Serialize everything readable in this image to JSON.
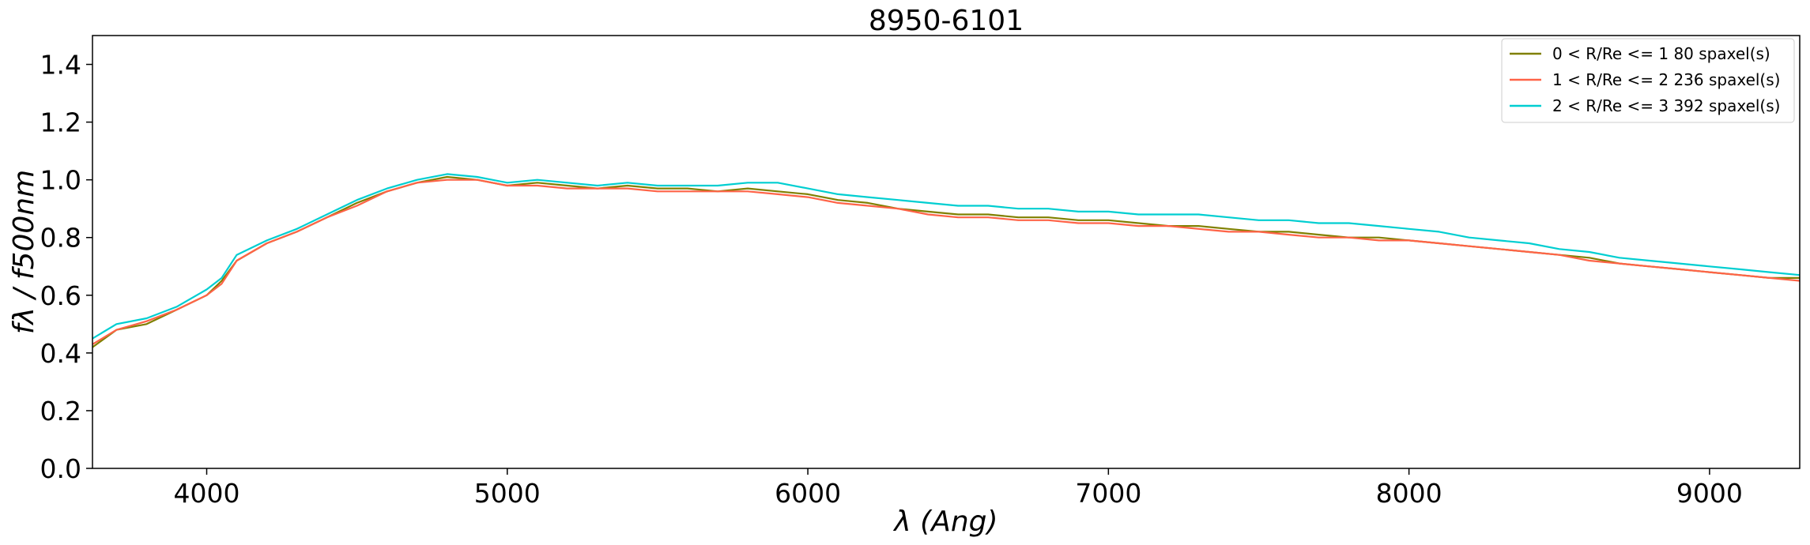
{
  "chart_data": {
    "type": "line",
    "title": "8950-6101",
    "xlabel": "λ (Ang)",
    "ylabel": "fλ / f500nm",
    "xlim": [
      3620,
      9300
    ],
    "ylim": [
      0.0,
      1.5
    ],
    "xticks": [
      4000,
      5000,
      6000,
      7000,
      8000,
      9000
    ],
    "yticks": [
      0.0,
      0.2,
      0.4,
      0.6,
      0.8,
      1.0,
      1.2,
      1.4
    ],
    "ytick_labels": [
      "0.0",
      "0.2",
      "0.4",
      "0.6",
      "0.8",
      "1.0",
      "1.2",
      "1.4"
    ],
    "grid": false,
    "legend_position": "top-right",
    "series": [
      {
        "name": "0 < R/Re <= 1 80 spaxel(s)",
        "color": "#808000",
        "x": [
          3620,
          3700,
          3800,
          3900,
          4000,
          4050,
          4100,
          4200,
          4300,
          4400,
          4500,
          4600,
          4700,
          4800,
          4900,
          5000,
          5100,
          5200,
          5300,
          5400,
          5500,
          5600,
          5700,
          5800,
          5900,
          6000,
          6100,
          6200,
          6300,
          6400,
          6500,
          6600,
          6700,
          6800,
          6900,
          7000,
          7100,
          7200,
          7300,
          7400,
          7500,
          7600,
          7700,
          7800,
          7900,
          8000,
          8100,
          8200,
          8300,
          8400,
          8500,
          8600,
          8700,
          8800,
          8900,
          9000,
          9100,
          9200,
          9300
        ],
        "values": [
          0.42,
          0.48,
          0.5,
          0.55,
          0.6,
          0.65,
          0.72,
          0.78,
          0.82,
          0.87,
          0.92,
          0.96,
          0.99,
          1.01,
          1.0,
          0.98,
          0.99,
          0.98,
          0.97,
          0.98,
          0.97,
          0.97,
          0.96,
          0.97,
          0.96,
          0.95,
          0.93,
          0.92,
          0.9,
          0.89,
          0.88,
          0.88,
          0.87,
          0.87,
          0.86,
          0.86,
          0.85,
          0.84,
          0.84,
          0.83,
          0.82,
          0.82,
          0.81,
          0.8,
          0.8,
          0.79,
          0.78,
          0.77,
          0.76,
          0.75,
          0.74,
          0.73,
          0.71,
          0.7,
          0.69,
          0.68,
          0.67,
          0.66,
          0.66
        ]
      },
      {
        "name": "1 < R/Re <= 2 236 spaxel(s)",
        "color": "#ff6347",
        "x": [
          3620,
          3700,
          3800,
          3900,
          4000,
          4050,
          4100,
          4200,
          4300,
          4400,
          4500,
          4600,
          4700,
          4800,
          4900,
          5000,
          5100,
          5200,
          5300,
          5400,
          5500,
          5600,
          5700,
          5800,
          5900,
          6000,
          6100,
          6200,
          6300,
          6400,
          6500,
          6600,
          6700,
          6800,
          6900,
          7000,
          7100,
          7200,
          7300,
          7400,
          7500,
          7600,
          7700,
          7800,
          7900,
          8000,
          8100,
          8200,
          8300,
          8400,
          8500,
          8600,
          8700,
          8800,
          8900,
          9000,
          9100,
          9200,
          9300
        ],
        "values": [
          0.43,
          0.48,
          0.51,
          0.55,
          0.6,
          0.64,
          0.72,
          0.78,
          0.82,
          0.87,
          0.91,
          0.96,
          0.99,
          1.0,
          1.0,
          0.98,
          0.98,
          0.97,
          0.97,
          0.97,
          0.96,
          0.96,
          0.96,
          0.96,
          0.95,
          0.94,
          0.92,
          0.91,
          0.9,
          0.88,
          0.87,
          0.87,
          0.86,
          0.86,
          0.85,
          0.85,
          0.84,
          0.84,
          0.83,
          0.82,
          0.82,
          0.81,
          0.8,
          0.8,
          0.79,
          0.79,
          0.78,
          0.77,
          0.76,
          0.75,
          0.74,
          0.72,
          0.71,
          0.7,
          0.69,
          0.68,
          0.67,
          0.66,
          0.65
        ]
      },
      {
        "name": "2 < R/Re <= 3 392 spaxel(s)",
        "color": "#00ced1",
        "x": [
          3620,
          3700,
          3800,
          3900,
          4000,
          4050,
          4100,
          4200,
          4300,
          4400,
          4500,
          4600,
          4700,
          4800,
          4900,
          5000,
          5100,
          5200,
          5300,
          5400,
          5500,
          5600,
          5700,
          5800,
          5900,
          6000,
          6100,
          6200,
          6300,
          6400,
          6500,
          6600,
          6700,
          6800,
          6900,
          7000,
          7100,
          7200,
          7300,
          7400,
          7500,
          7600,
          7700,
          7800,
          7900,
          8000,
          8100,
          8200,
          8300,
          8400,
          8500,
          8600,
          8700,
          8800,
          8900,
          9000,
          9100,
          9200,
          9300
        ],
        "values": [
          0.45,
          0.5,
          0.52,
          0.56,
          0.62,
          0.66,
          0.74,
          0.79,
          0.83,
          0.88,
          0.93,
          0.97,
          1.0,
          1.02,
          1.01,
          0.99,
          1.0,
          0.99,
          0.98,
          0.99,
          0.98,
          0.98,
          0.98,
          0.99,
          0.99,
          0.97,
          0.95,
          0.94,
          0.93,
          0.92,
          0.91,
          0.91,
          0.9,
          0.9,
          0.89,
          0.89,
          0.88,
          0.88,
          0.88,
          0.87,
          0.86,
          0.86,
          0.85,
          0.85,
          0.84,
          0.83,
          0.82,
          0.8,
          0.79,
          0.78,
          0.76,
          0.75,
          0.73,
          0.72,
          0.71,
          0.7,
          0.69,
          0.68,
          0.67
        ]
      }
    ]
  }
}
